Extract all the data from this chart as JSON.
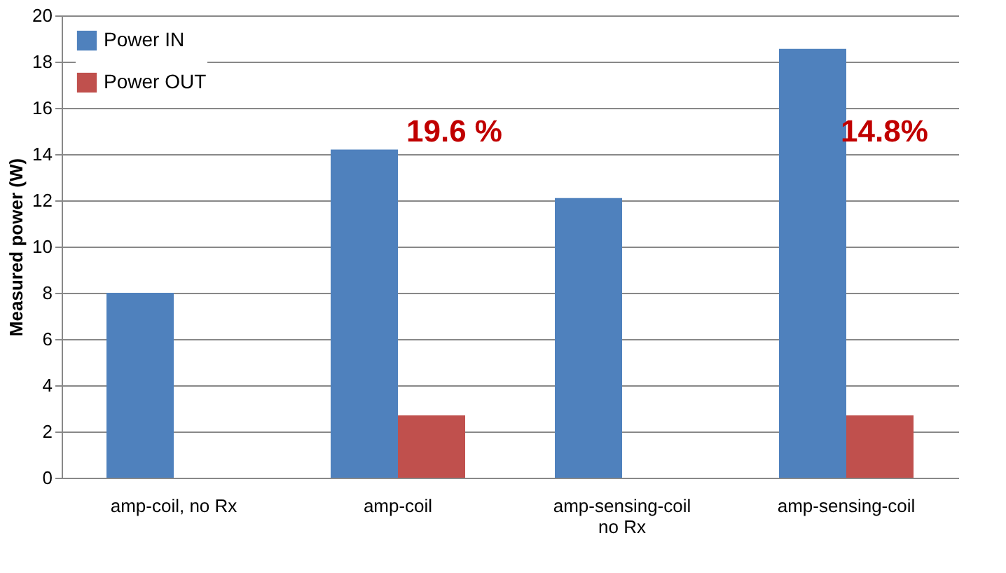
{
  "chart_data": {
    "type": "bar",
    "ylabel": "Measured power (W)",
    "categories": [
      "amp-coil, no Rx",
      "amp-coil",
      "amp-sensing-coil\nno Rx",
      "amp-sensing-coil"
    ],
    "series": [
      {
        "name": "Power IN",
        "color": "#4f81bd",
        "values": [
          8.0,
          14.2,
          12.1,
          18.55
        ]
      },
      {
        "name": "Power OUT",
        "color": "#c0504d",
        "values": [
          null,
          2.7,
          null,
          2.7
        ]
      }
    ],
    "ylim": [
      0,
      20
    ],
    "yticks": [
      0,
      2,
      4,
      6,
      8,
      10,
      12,
      14,
      16,
      18,
      20
    ],
    "grid": "y",
    "legend": "top left",
    "annotations": [
      "19.6 %",
      "14.8%"
    ]
  }
}
